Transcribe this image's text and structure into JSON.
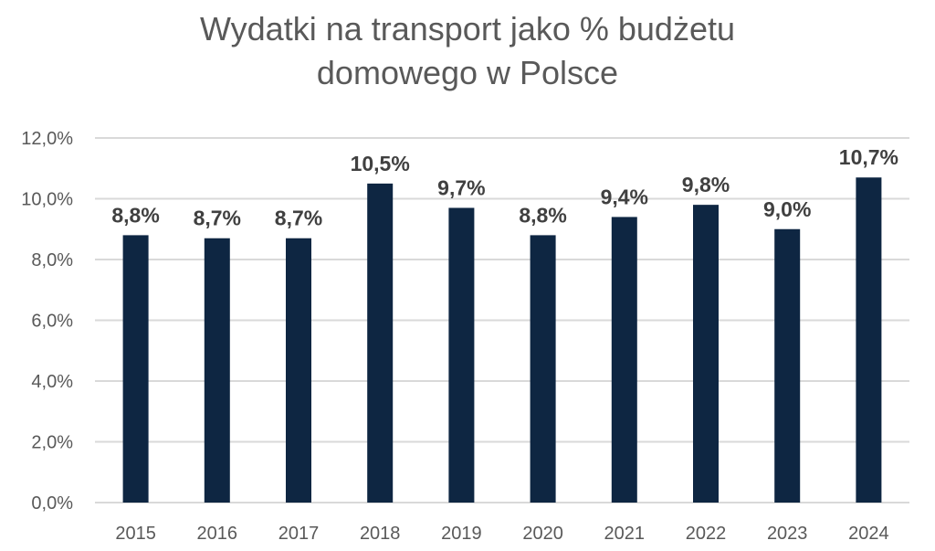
{
  "chart_data": {
    "type": "bar",
    "title_lines": [
      "Wydatki na transport jako % budżetu",
      "domowego w Polsce"
    ],
    "categories": [
      "2015",
      "2016",
      "2017",
      "2018",
      "2019",
      "2020",
      "2021",
      "2022",
      "2023",
      "2024"
    ],
    "values": [
      8.8,
      8.7,
      8.7,
      10.5,
      9.7,
      8.8,
      9.4,
      9.8,
      9.0,
      10.7
    ],
    "data_labels": [
      "8,8%",
      "8,7%",
      "8,7%",
      "10,5%",
      "9,7%",
      "8,8%",
      "9,4%",
      "9,8%",
      "9,0%",
      "10,7%"
    ],
    "y_ticks": [
      0,
      2,
      4,
      6,
      8,
      10,
      12
    ],
    "y_tick_labels": [
      "0,0%",
      "2,0%",
      "4,0%",
      "6,0%",
      "8,0%",
      "10,0%",
      "12,0%"
    ],
    "ylim": [
      0,
      12
    ],
    "xlabel": "",
    "ylabel": "",
    "grid": true,
    "legend": "none",
    "colors": {
      "bar": "#0e2642",
      "title": "#595959",
      "axis_text": "#595959",
      "data_label": "#404040",
      "grid": "#d9d9d9"
    }
  }
}
